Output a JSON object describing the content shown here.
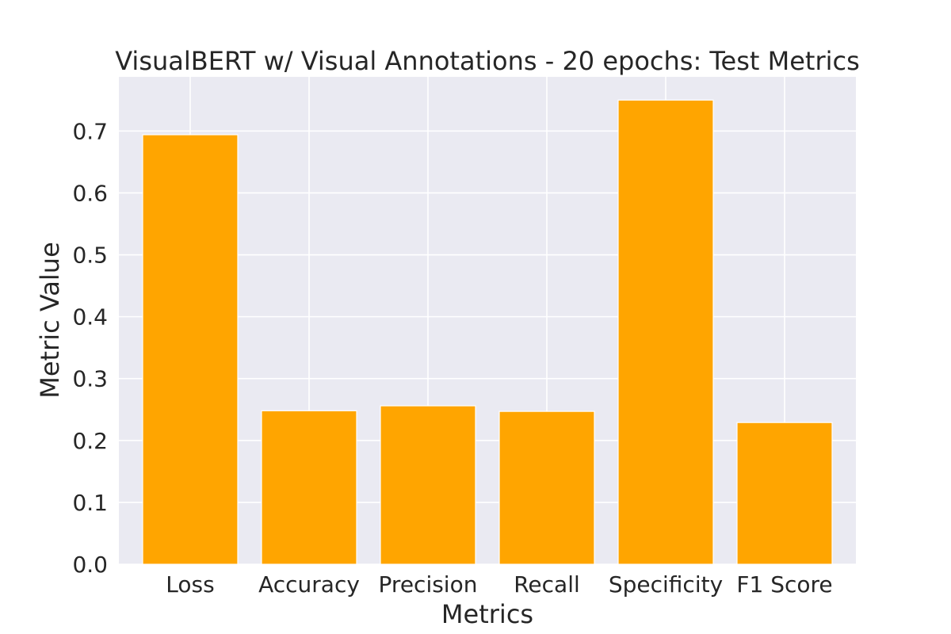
{
  "chart_data": {
    "type": "bar",
    "title": "VisualBERT w/ Visual Annotations - 20 epochs: Test Metrics",
    "xlabel": "Metrics",
    "ylabel": "Metric Value",
    "categories": [
      "Loss",
      "Accuracy",
      "Precision",
      "Recall",
      "Specificity",
      "F1 Score"
    ],
    "values": [
      0.694,
      0.248,
      0.256,
      0.247,
      0.75,
      0.229
    ],
    "ylim": [
      0,
      0.7875
    ],
    "yticks": [
      "0.0",
      "0.1",
      "0.2",
      "0.3",
      "0.4",
      "0.5",
      "0.6",
      "0.7"
    ],
    "grid": true,
    "legend": "none",
    "colors": {
      "bar": "#FFA500",
      "plot_background": "#EAEAF2",
      "grid": "#FFFFFF",
      "text": "#262626"
    }
  }
}
